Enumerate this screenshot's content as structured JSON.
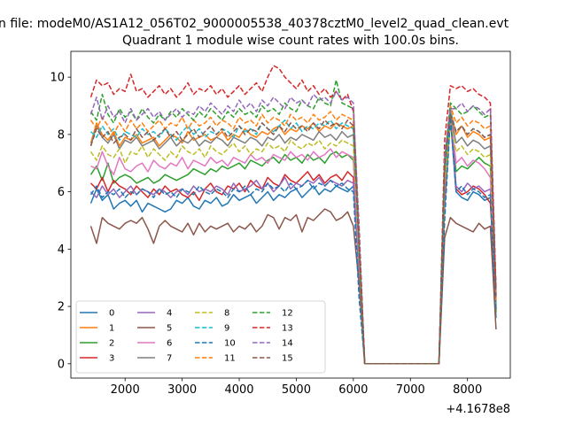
{
  "suptitle": "n file: modeM0/AS1A12_056T02_9000005538_40378cztM0_level2_quad_clean.evt",
  "chart_data": {
    "type": "line",
    "title": "Quadrant 1 module wise count rates with 100.0s bins.",
    "xlabel": "",
    "ylabel": "",
    "x_offset_label": "+4.1678e8",
    "xlim": [
      1050,
      8750
    ],
    "ylim": [
      -0.5,
      10.9
    ],
    "xticks": [
      2000,
      3000,
      4000,
      5000,
      6000,
      7000,
      8000
    ],
    "yticks": [
      0,
      2,
      4,
      6,
      8,
      10
    ],
    "grid": false,
    "legend_position": "lower-left",
    "x": [
      1400,
      1500,
      1600,
      1700,
      1800,
      1900,
      2000,
      2100,
      2200,
      2300,
      2400,
      2500,
      2600,
      2700,
      2800,
      2900,
      3000,
      3100,
      3200,
      3300,
      3400,
      3500,
      3600,
      3700,
      3800,
      3900,
      4000,
      4100,
      4200,
      4300,
      4400,
      4500,
      4600,
      4700,
      4800,
      4900,
      5000,
      5100,
      5200,
      5300,
      5400,
      5500,
      5600,
      5700,
      5800,
      5900,
      6000,
      6100,
      6200,
      6300,
      7500,
      7600,
      7700,
      7800,
      7900,
      8000,
      8100,
      8200,
      8300,
      8400,
      8500
    ],
    "series": [
      {
        "name": "0",
        "style": "solid",
        "color": "#1f77b4",
        "values": [
          5.6,
          6.1,
          5.7,
          5.9,
          5.4,
          5.6,
          5.7,
          5.5,
          5.7,
          5.3,
          5.6,
          5.5,
          5.4,
          5.3,
          5.4,
          5.7,
          5.6,
          5.8,
          5.5,
          5.4,
          5.7,
          5.6,
          5.8,
          5.5,
          5.6,
          5.9,
          5.7,
          5.8,
          5.9,
          5.6,
          5.8,
          6.0,
          5.7,
          5.9,
          5.8,
          6.0,
          6.1,
          5.8,
          6.0,
          6.2,
          5.9,
          6.1,
          6.0,
          6.2,
          6.1,
          6.0,
          6.2,
          3.2,
          0,
          0,
          0,
          5.5,
          8.6,
          6.0,
          5.8,
          5.7,
          6.0,
          5.9,
          5.7,
          5.8,
          1.6
        ]
      },
      {
        "name": "1",
        "style": "solid",
        "color": "#ff7f0e",
        "values": [
          7.7,
          8.4,
          8.0,
          7.8,
          8.1,
          7.6,
          7.9,
          7.8,
          8.0,
          7.7,
          7.8,
          7.9,
          7.6,
          7.8,
          8.0,
          7.9,
          7.7,
          8.1,
          7.8,
          7.9,
          8.0,
          7.8,
          7.9,
          8.1,
          7.8,
          8.0,
          7.9,
          8.2,
          8.0,
          7.9,
          8.1,
          8.0,
          8.2,
          8.3,
          8.0,
          8.2,
          8.1,
          8.3,
          8.2,
          8.4,
          8.1,
          8.3,
          8.2,
          8.4,
          8.3,
          8.2,
          8.3,
          3.8,
          0,
          0,
          0,
          6.5,
          8.9,
          8.0,
          8.3,
          7.9,
          8.1,
          8.0,
          7.8,
          7.9,
          2.0
        ]
      },
      {
        "name": "2",
        "style": "solid",
        "color": "#2ca02c",
        "values": [
          6.6,
          6.9,
          6.4,
          7.0,
          6.3,
          6.5,
          6.6,
          6.5,
          6.3,
          6.4,
          6.5,
          6.3,
          6.4,
          6.6,
          6.5,
          6.4,
          6.5,
          6.6,
          6.8,
          6.7,
          6.6,
          6.8,
          6.7,
          6.9,
          6.8,
          6.9,
          7.0,
          6.8,
          7.1,
          7.0,
          6.9,
          7.1,
          7.2,
          7.0,
          7.3,
          7.1,
          7.2,
          7.0,
          7.3,
          7.1,
          7.2,
          7.0,
          7.3,
          7.4,
          7.2,
          7.3,
          7.1,
          3.4,
          0,
          0,
          0,
          5.8,
          8.5,
          6.7,
          6.9,
          6.8,
          7.0,
          7.2,
          7.0,
          6.9,
          1.8
        ]
      },
      {
        "name": "3",
        "style": "solid",
        "color": "#d62728",
        "values": [
          6.3,
          6.1,
          6.5,
          6.0,
          6.4,
          6.2,
          6.1,
          5.9,
          6.2,
          6.0,
          5.8,
          6.1,
          5.9,
          6.2,
          6.0,
          6.1,
          5.9,
          5.8,
          6.0,
          5.7,
          6.1,
          6.3,
          6.0,
          5.9,
          6.2,
          6.1,
          6.3,
          6.0,
          6.4,
          6.2,
          6.1,
          6.5,
          6.3,
          6.2,
          6.6,
          6.4,
          6.3,
          6.5,
          6.7,
          6.4,
          6.6,
          6.3,
          6.5,
          6.6,
          6.4,
          6.7,
          6.5,
          3.3,
          0,
          0,
          0,
          5.8,
          8.7,
          6.1,
          5.9,
          6.0,
          6.2,
          6.1,
          5.9,
          5.6,
          2.5
        ]
      },
      {
        "name": "4",
        "style": "solid",
        "color": "#9467bd",
        "values": [
          6.0,
          5.8,
          6.2,
          5.9,
          6.1,
          5.8,
          6.0,
          6.2,
          5.9,
          6.1,
          6.0,
          5.9,
          6.1,
          6.0,
          5.8,
          6.0,
          6.1,
          5.9,
          6.2,
          6.0,
          6.1,
          6.0,
          6.2,
          6.1,
          5.9,
          6.3,
          6.0,
          6.1,
          6.2,
          6.4,
          6.1,
          6.3,
          6.0,
          6.2,
          6.5,
          6.1,
          6.3,
          6.2,
          6.4,
          6.3,
          6.5,
          6.2,
          6.4,
          6.3,
          6.2,
          6.4,
          6.3,
          3.3,
          0,
          0,
          0,
          6.0,
          8.9,
          6.2,
          6.0,
          6.3,
          6.1,
          6.2,
          6.0,
          6.1,
          1.9
        ]
      },
      {
        "name": "5",
        "style": "solid",
        "color": "#8c564b",
        "values": [
          4.8,
          4.2,
          5.1,
          4.9,
          4.8,
          4.7,
          4.9,
          5.0,
          4.9,
          5.1,
          4.7,
          4.2,
          4.8,
          5.0,
          4.8,
          4.7,
          4.6,
          4.9,
          4.5,
          4.9,
          4.6,
          4.8,
          4.7,
          4.8,
          4.9,
          4.6,
          4.8,
          4.7,
          4.9,
          4.6,
          4.8,
          5.2,
          5.1,
          4.7,
          5.1,
          5.0,
          5.2,
          4.6,
          5.1,
          5.0,
          5.2,
          5.4,
          5.3,
          5.0,
          5.1,
          5.3,
          4.8,
          2.8,
          0,
          0,
          0,
          4.4,
          5.1,
          4.9,
          4.8,
          4.7,
          4.6,
          4.9,
          4.7,
          4.8,
          1.2
        ]
      },
      {
        "name": "6",
        "style": "solid",
        "color": "#e377c2",
        "values": [
          6.9,
          6.8,
          7.4,
          6.9,
          6.6,
          7.2,
          6.8,
          6.7,
          6.9,
          7.0,
          6.7,
          7.1,
          6.9,
          6.8,
          7.0,
          6.9,
          7.2,
          6.8,
          7.1,
          7.0,
          6.9,
          7.2,
          7.0,
          7.1,
          6.9,
          7.2,
          7.1,
          7.0,
          7.3,
          7.1,
          7.2,
          7.0,
          7.3,
          7.2,
          7.1,
          7.4,
          7.2,
          7.3,
          7.1,
          7.4,
          7.2,
          7.3,
          7.5,
          7.2,
          7.4,
          7.3,
          7.2,
          3.6,
          0,
          0,
          0,
          6.1,
          8.8,
          7.0,
          7.2,
          6.9,
          7.1,
          7.0,
          6.8,
          6.5,
          2.2
        ]
      },
      {
        "name": "7",
        "style": "solid",
        "color": "#7f7f7f",
        "values": [
          7.6,
          8.3,
          7.9,
          7.7,
          8.0,
          7.5,
          7.8,
          7.7,
          7.9,
          7.6,
          7.7,
          7.8,
          7.5,
          7.7,
          7.9,
          7.6,
          7.8,
          7.7,
          7.9,
          7.6,
          7.8,
          7.7,
          7.9,
          7.8,
          7.6,
          7.9,
          7.8,
          7.7,
          7.9,
          7.8,
          7.6,
          7.9,
          7.8,
          8.0,
          7.7,
          7.9,
          7.8,
          8.0,
          7.9,
          7.8,
          8.1,
          7.9,
          8.0,
          7.8,
          8.1,
          7.9,
          8.0,
          3.9,
          0,
          0,
          0,
          6.4,
          8.7,
          7.7,
          7.9,
          7.6,
          7.8,
          7.7,
          7.5,
          7.6,
          1.9
        ]
      },
      {
        "name": "8",
        "style": "dashed",
        "color": "#bcbd22",
        "values": [
          7.4,
          7.1,
          7.6,
          7.3,
          7.2,
          7.5,
          7.0,
          7.4,
          7.3,
          7.6,
          7.2,
          7.5,
          7.3,
          7.1,
          7.4,
          7.2,
          7.6,
          7.4,
          7.3,
          7.5,
          7.2,
          7.6,
          7.4,
          7.3,
          7.5,
          7.7,
          7.4,
          7.6,
          7.3,
          7.5,
          7.4,
          7.7,
          7.5,
          7.6,
          7.4,
          7.8,
          7.6,
          7.5,
          7.7,
          7.6,
          7.8,
          7.5,
          7.7,
          7.6,
          7.8,
          7.7,
          7.6,
          3.8,
          0,
          0,
          0,
          6.3,
          8.4,
          7.4,
          7.6,
          7.3,
          7.5,
          7.4,
          7.2,
          7.3,
          2.4
        ]
      },
      {
        "name": "9",
        "style": "dashed",
        "color": "#17becf",
        "values": [
          8.1,
          7.9,
          8.3,
          8.0,
          8.2,
          7.8,
          8.1,
          8.0,
          7.9,
          8.2,
          8.0,
          8.1,
          7.9,
          8.2,
          8.0,
          7.8,
          8.1,
          8.3,
          8.0,
          8.2,
          7.9,
          8.1,
          8.0,
          8.2,
          8.1,
          7.9,
          8.3,
          8.1,
          8.2,
          8.0,
          8.4,
          8.2,
          8.1,
          8.3,
          8.5,
          8.2,
          8.4,
          8.1,
          8.3,
          8.2,
          8.4,
          8.3,
          8.5,
          8.2,
          8.4,
          8.3,
          8.2,
          4.0,
          0,
          0,
          0,
          6.7,
          8.8,
          8.1,
          8.3,
          8.0,
          8.2,
          8.1,
          7.9,
          8.0,
          2.1
        ]
      },
      {
        "name": "10",
        "style": "dashed",
        "color": "#1f77b4",
        "values": [
          5.9,
          6.2,
          5.8,
          6.0,
          5.9,
          6.1,
          5.8,
          6.0,
          5.9,
          6.1,
          6.0,
          5.8,
          6.1,
          5.9,
          6.0,
          5.8,
          6.1,
          6.0,
          5.9,
          6.2,
          6.0,
          5.9,
          6.1,
          6.0,
          5.8,
          6.1,
          6.0,
          6.2,
          5.9,
          6.1,
          6.0,
          6.3,
          6.1,
          6.2,
          6.0,
          6.3,
          6.1,
          6.2,
          6.4,
          6.1,
          6.3,
          6.2,
          6.4,
          6.2,
          6.3,
          6.1,
          6.0,
          2.3,
          0,
          0,
          0,
          5.0,
          8.6,
          6.0,
          6.2,
          5.9,
          6.1,
          6.0,
          5.8,
          5.9,
          1.9
        ]
      },
      {
        "name": "11",
        "style": "dashed",
        "color": "#ff7f0e",
        "values": [
          8.5,
          8.2,
          8.6,
          8.3,
          8.0,
          8.4,
          8.1,
          8.5,
          8.2,
          8.4,
          8.1,
          8.3,
          8.5,
          8.2,
          8.4,
          8.3,
          8.6,
          8.2,
          8.5,
          8.3,
          8.4,
          8.6,
          8.3,
          8.5,
          8.4,
          8.2,
          8.6,
          8.4,
          8.5,
          8.3,
          8.7,
          8.4,
          8.6,
          8.5,
          8.3,
          8.7,
          8.5,
          8.6,
          8.4,
          8.7,
          8.5,
          8.6,
          8.8,
          8.5,
          8.7,
          8.6,
          8.5,
          4.1,
          0,
          0,
          0,
          6.9,
          9.0,
          8.4,
          8.6,
          8.3,
          8.5,
          8.4,
          8.2,
          8.3,
          2.2
        ]
      },
      {
        "name": "12",
        "style": "dashed",
        "color": "#2ca02c",
        "values": [
          8.8,
          8.5,
          9.4,
          8.7,
          8.4,
          8.9,
          8.6,
          8.8,
          8.5,
          8.9,
          8.6,
          8.4,
          8.7,
          8.5,
          8.8,
          8.6,
          8.9,
          8.7,
          8.5,
          8.8,
          8.6,
          8.9,
          8.7,
          8.5,
          8.8,
          8.6,
          8.9,
          8.7,
          8.8,
          8.6,
          9.0,
          8.8,
          8.9,
          8.7,
          9.1,
          8.9,
          8.8,
          9.2,
          9.0,
          8.9,
          9.3,
          9.1,
          9.0,
          9.9,
          9.1,
          9.0,
          8.9,
          4.3,
          0,
          0,
          0,
          7.1,
          9.1,
          8.9,
          8.7,
          8.8,
          9.0,
          8.8,
          8.6,
          8.7,
          2.6
        ]
      },
      {
        "name": "13",
        "style": "dashed",
        "color": "#d62728",
        "values": [
          9.3,
          9.9,
          9.7,
          9.8,
          9.4,
          9.6,
          9.5,
          10.1,
          9.5,
          9.6,
          9.3,
          9.5,
          9.7,
          9.4,
          9.6,
          9.3,
          9.5,
          9.8,
          9.4,
          9.6,
          9.5,
          9.7,
          9.4,
          9.6,
          9.3,
          9.5,
          9.7,
          9.4,
          9.6,
          9.8,
          9.5,
          10.0,
          10.4,
          10.3,
          10.0,
          9.8,
          9.6,
          9.9,
          9.5,
          9.7,
          9.4,
          9.6,
          9.3,
          9.5,
          9.2,
          9.4,
          8.8,
          4.8,
          0,
          0,
          0,
          7.8,
          9.7,
          9.6,
          9.7,
          9.5,
          9.6,
          9.4,
          9.3,
          9.1,
          2.6
        ]
      },
      {
        "name": "14",
        "style": "dashed",
        "color": "#9467bd",
        "values": [
          8.7,
          9.3,
          8.5,
          9.0,
          8.6,
          8.8,
          8.4,
          8.9,
          8.5,
          8.7,
          8.9,
          8.6,
          8.8,
          8.5,
          8.7,
          8.9,
          8.6,
          8.8,
          8.7,
          9.0,
          8.8,
          9.1,
          8.9,
          8.7,
          9.0,
          8.8,
          9.2,
          8.9,
          9.1,
          8.8,
          9.2,
          9.0,
          9.3,
          9.1,
          8.9,
          9.3,
          9.1,
          9.2,
          9.0,
          9.4,
          9.2,
          9.3,
          9.1,
          9.5,
          9.2,
          9.3,
          9.1,
          4.5,
          0,
          0,
          0,
          7.3,
          8.9,
          8.9,
          9.1,
          8.8,
          9.0,
          8.9,
          8.7,
          8.9,
          2.4
        ]
      },
      {
        "name": "15",
        "style": "dashed",
        "color": "#8c564b",
        "values": [
          7.6,
          8.2,
          7.9,
          8.1,
          7.7,
          7.9,
          8.0,
          7.8,
          8.2,
          7.9,
          8.1,
          7.8,
          8.0,
          8.2,
          7.9,
          8.1,
          7.8,
          8.0,
          8.2,
          7.9,
          8.1,
          8.3,
          8.0,
          8.2,
          7.9,
          8.1,
          8.3,
          8.0,
          8.2,
          8.1,
          8.4,
          8.2,
          8.0,
          8.3,
          8.1,
          8.4,
          8.2,
          8.3,
          8.1,
          8.4,
          8.2,
          8.5,
          8.3,
          8.4,
          8.2,
          8.5,
          8.3,
          4.0,
          0,
          0,
          0,
          6.8,
          8.7,
          8.1,
          8.3,
          8.0,
          8.2,
          8.1,
          7.9,
          8.0,
          2.3
        ]
      }
    ]
  }
}
